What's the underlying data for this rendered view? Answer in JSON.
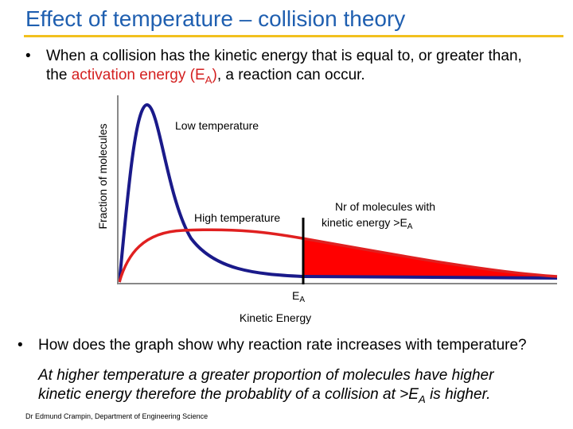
{
  "header": {
    "title": "Effect of temperature – collision theory"
  },
  "bullet_1": {
    "line_1": "When a collision has the kinetic energy that is equal to, or greater than,",
    "line_2_start": "the",
    "highlight": "activation energy (E",
    "highlight_sub": "A",
    "highlight_end": ")",
    "line_2_end": ", a reaction can occur."
  },
  "diagram": {
    "y_axis_label": "Fraction of molecules",
    "low_label": "Low temperature",
    "high_label": "High temperature",
    "area_label_1": "Nr of molecules with",
    "area_label_2": "kinetic energy >E",
    "area_label_sub": "A",
    "ea_label": "E",
    "ea_sub": "A",
    "x_axis_label": "Kinetic Energy"
  },
  "bullet_2": {
    "text": "How does the graph show why reaction rate increases with temperature?"
  },
  "answer": {
    "line_1": "At higher temperature a greater proportion of molecules have higher",
    "line_2_start": "kinetic energy therefore the probablity of a collision at >E",
    "line_2_sub": "A",
    "line_2_end": " is higher."
  },
  "footer": {
    "text": "Dr Edmund Crampin, Department of Engineering Science"
  }
}
